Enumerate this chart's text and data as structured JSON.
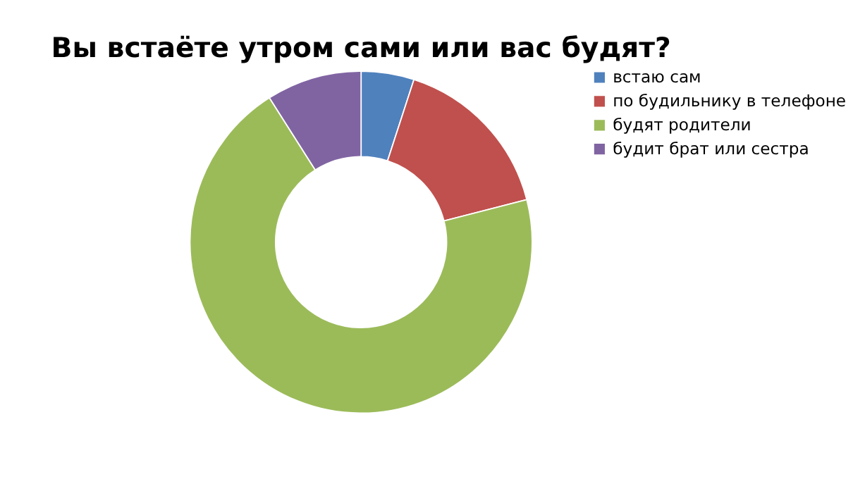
{
  "chart_data": {
    "type": "donut",
    "title": "Вы встаёте утром сами или вас будят?",
    "categories": [
      "встаю сам",
      "по будильнику в телефоне",
      "будят родители",
      "будит брат или сестра"
    ],
    "values": [
      5,
      16,
      70,
      9
    ],
    "colors": [
      "#4f81bd",
      "#c0504d",
      "#9bbb59",
      "#8064a2"
    ],
    "legend": "right"
  }
}
